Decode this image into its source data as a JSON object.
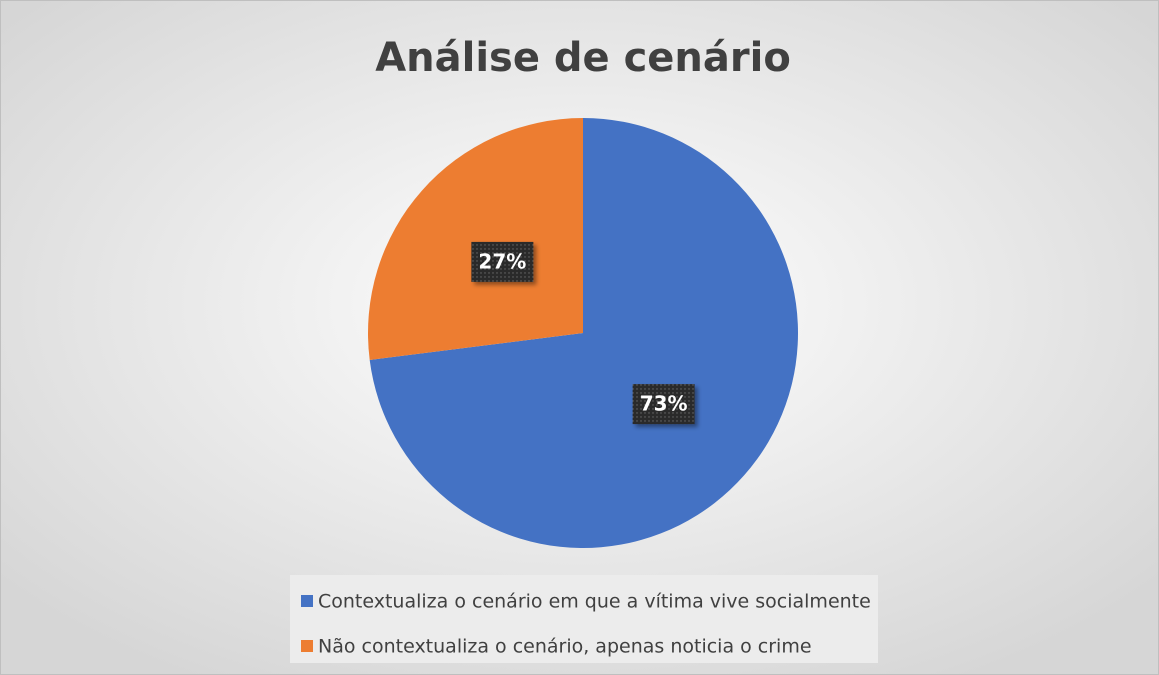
{
  "chart_data": {
    "type": "pie",
    "title": "Análise de cenário",
    "categories": [
      "Contextualiza o cenário em que a vítima vive socialmente",
      "Não contextualiza o cenário, apenas noticia o crime"
    ],
    "values": [
      73,
      27
    ],
    "value_labels": [
      "73%",
      "27%"
    ],
    "colors": [
      "#4472c4",
      "#ed7d31"
    ],
    "legend": "bottom"
  }
}
